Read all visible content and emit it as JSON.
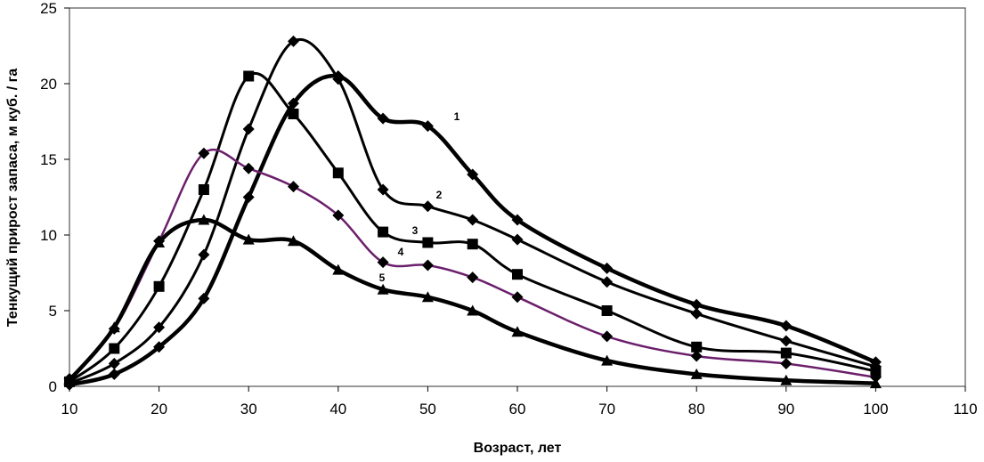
{
  "chart_data": {
    "type": "line",
    "title": "",
    "xlabel": "Возраст,  лет",
    "ylabel": "Тенкущий прирост запаса,  м куб. / га",
    "xlim": [
      10,
      110
    ],
    "ylim": [
      0,
      25
    ],
    "xticks": [
      10,
      20,
      30,
      40,
      50,
      60,
      70,
      80,
      90,
      100,
      110
    ],
    "yticks": [
      0,
      5,
      10,
      15,
      20,
      25
    ],
    "grid": false,
    "legend": "none",
    "series": [
      {
        "name": "1",
        "color": "#000000",
        "marker": "diamond",
        "x": [
          10,
          15,
          20,
          25,
          30,
          35,
          40,
          45,
          50,
          55,
          60,
          70,
          80,
          90,
          100
        ],
        "y": [
          0.1,
          0.8,
          2.6,
          5.8,
          12.5,
          18.7,
          20.5,
          17.7,
          17.2,
          14.0,
          11.0,
          7.8,
          5.4,
          4.0,
          1.6
        ]
      },
      {
        "name": "2",
        "color": "#000000",
        "marker": "diamond",
        "x": [
          10,
          15,
          20,
          25,
          30,
          35,
          40,
          45,
          50,
          55,
          60,
          70,
          80,
          90,
          100
        ],
        "y": [
          0.2,
          1.5,
          3.9,
          8.7,
          17.0,
          22.8,
          20.3,
          13.0,
          11.9,
          11.0,
          9.7,
          6.9,
          4.8,
          3.0,
          1.3
        ]
      },
      {
        "name": "3",
        "color": "#000000",
        "marker": "square",
        "x": [
          10,
          15,
          20,
          25,
          30,
          35,
          40,
          45,
          50,
          55,
          60,
          70,
          80,
          90,
          100
        ],
        "y": [
          0.3,
          2.5,
          6.6,
          13.0,
          20.5,
          18.0,
          14.1,
          10.2,
          9.5,
          9.4,
          7.4,
          5.0,
          2.6,
          2.2,
          1.0
        ]
      },
      {
        "name": "4",
        "color": "#6b1f6b",
        "marker": "diamond",
        "x": [
          10,
          15,
          20,
          25,
          30,
          35,
          40,
          45,
          50,
          55,
          60,
          70,
          80,
          90,
          100
        ],
        "y": [
          0.5,
          3.8,
          9.6,
          15.4,
          14.4,
          13.2,
          11.3,
          8.2,
          8.0,
          7.2,
          5.9,
          3.3,
          2.0,
          1.5,
          0.6
        ]
      },
      {
        "name": "5",
        "color": "#000000",
        "marker": "triangle",
        "x": [
          10,
          15,
          20,
          25,
          30,
          35,
          40,
          45,
          50,
          55,
          60,
          70,
          80,
          90,
          100
        ],
        "y": [
          0.4,
          3.9,
          9.5,
          11.0,
          9.7,
          9.6,
          7.7,
          6.4,
          5.9,
          5.0,
          3.6,
          1.7,
          0.8,
          0.4,
          0.2
        ]
      }
    ]
  }
}
